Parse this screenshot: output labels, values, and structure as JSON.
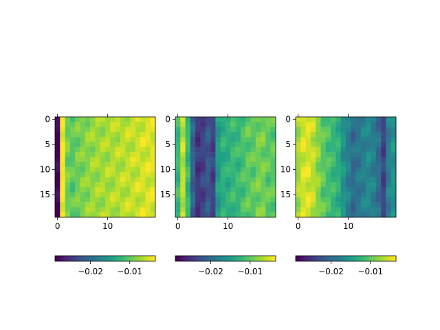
{
  "chart_data": [
    {
      "type": "heatmap",
      "rows": 20,
      "cols": 20,
      "x_ticks": [
        0,
        10
      ],
      "x_tick_labels": [
        "0",
        "10"
      ],
      "y_ticks": [
        0,
        5,
        10,
        15
      ],
      "y_tick_labels": [
        "0",
        "5",
        "10",
        "15"
      ],
      "colormap": "viridis",
      "clim": [
        -0.029,
        -0.0035
      ],
      "colorbar_ticks": [
        -0.02,
        -0.01
      ],
      "colorbar_tick_labels": [
        "−0.02",
        "−0.01"
      ],
      "column_profile": [
        -0.029,
        -0.0035,
        -0.009,
        -0.01,
        -0.009,
        -0.0085,
        -0.008,
        -0.0075,
        -0.0072,
        -0.007,
        -0.0068,
        -0.0066,
        -0.0064,
        -0.0062,
        -0.006,
        -0.0058,
        -0.0055,
        -0.0052,
        -0.005,
        -0.0048
      ]
    },
    {
      "type": "heatmap",
      "rows": 20,
      "cols": 20,
      "x_ticks": [
        0,
        10
      ],
      "x_tick_labels": [
        "0",
        "10"
      ],
      "y_ticks": [
        0,
        5,
        10,
        15
      ],
      "y_tick_labels": [
        "0",
        "5",
        "10",
        "15"
      ],
      "colormap": "viridis",
      "clim": [
        -0.029,
        -0.0035
      ],
      "colorbar_ticks": [
        -0.02,
        -0.01
      ],
      "colorbar_tick_labels": [
        "−0.02",
        "−0.01"
      ],
      "column_profile": [
        -0.012,
        -0.006,
        -0.012,
        -0.021,
        -0.025,
        -0.024,
        -0.022,
        -0.024,
        -0.015,
        -0.013,
        -0.013,
        -0.012,
        -0.012,
        -0.011,
        -0.01,
        -0.01,
        -0.009,
        -0.009,
        -0.01,
        -0.01
      ]
    },
    {
      "type": "heatmap",
      "rows": 20,
      "cols": 20,
      "x_ticks": [
        0,
        10
      ],
      "x_tick_labels": [
        "0",
        "10"
      ],
      "y_ticks": [
        0,
        5,
        10,
        15
      ],
      "y_tick_labels": [
        "0",
        "5",
        "10",
        "15"
      ],
      "colormap": "viridis",
      "clim": [
        -0.029,
        -0.0035
      ],
      "colorbar_ticks": [
        -0.02,
        -0.01
      ],
      "colorbar_tick_labels": [
        "−0.02",
        "−0.01"
      ],
      "column_profile": [
        -0.007,
        -0.005,
        -0.005,
        -0.006,
        -0.008,
        -0.01,
        -0.011,
        -0.012,
        -0.013,
        -0.016,
        -0.018,
        -0.02,
        -0.019,
        -0.018,
        -0.017,
        -0.018,
        -0.02,
        -0.024,
        -0.018,
        -0.016
      ]
    }
  ]
}
